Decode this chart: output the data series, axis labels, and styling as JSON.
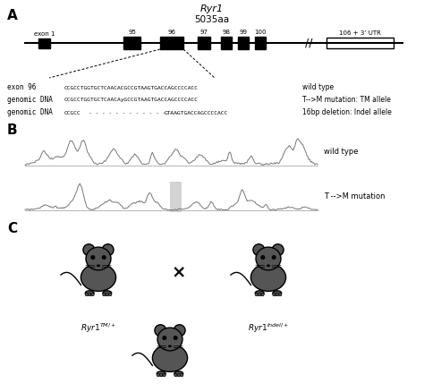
{
  "title_gene": "Ryr1",
  "title_aa": "5035aa",
  "panel_A_label": "A",
  "panel_B_label": "B",
  "panel_C_label": "C",
  "exon1_label": "exon 1",
  "exon_numbers": [
    95,
    96,
    97,
    98,
    99,
    100
  ],
  "utr_label": "106 + 3’ UTR",
  "seq_wt_label": "exon 96",
  "seq_wt": "CCGCCTGGTGCTCAACACGCCGTAAGTGACCAGCCCCACC",
  "seq_wt_annotation": "wild type",
  "seq_tm_label": "genomic DNA",
  "seq_tm": "CCGCCTGGTGCTCAACАyGCCGTAAGTGACCAGCCCCACC",
  "seq_tm_annotation": "T-->M mutation: TM allele",
  "seq_indel_label": "genomic DNA",
  "seq_indel_seq1": "CCGCC",
  "seq_indel_seq2": "GTAAGTGACCAGCCCCACC",
  "seq_indel_annotation": "16bp deletion: Indel allele",
  "wt_trace_label": "wild type",
  "tm_trace_label": "T -->M mutation",
  "cross_symbol": "×",
  "bg_color": "#ffffff",
  "text_color": "#000000",
  "mouse_color": "#555555",
  "highlight_color": "#c8c8c8"
}
